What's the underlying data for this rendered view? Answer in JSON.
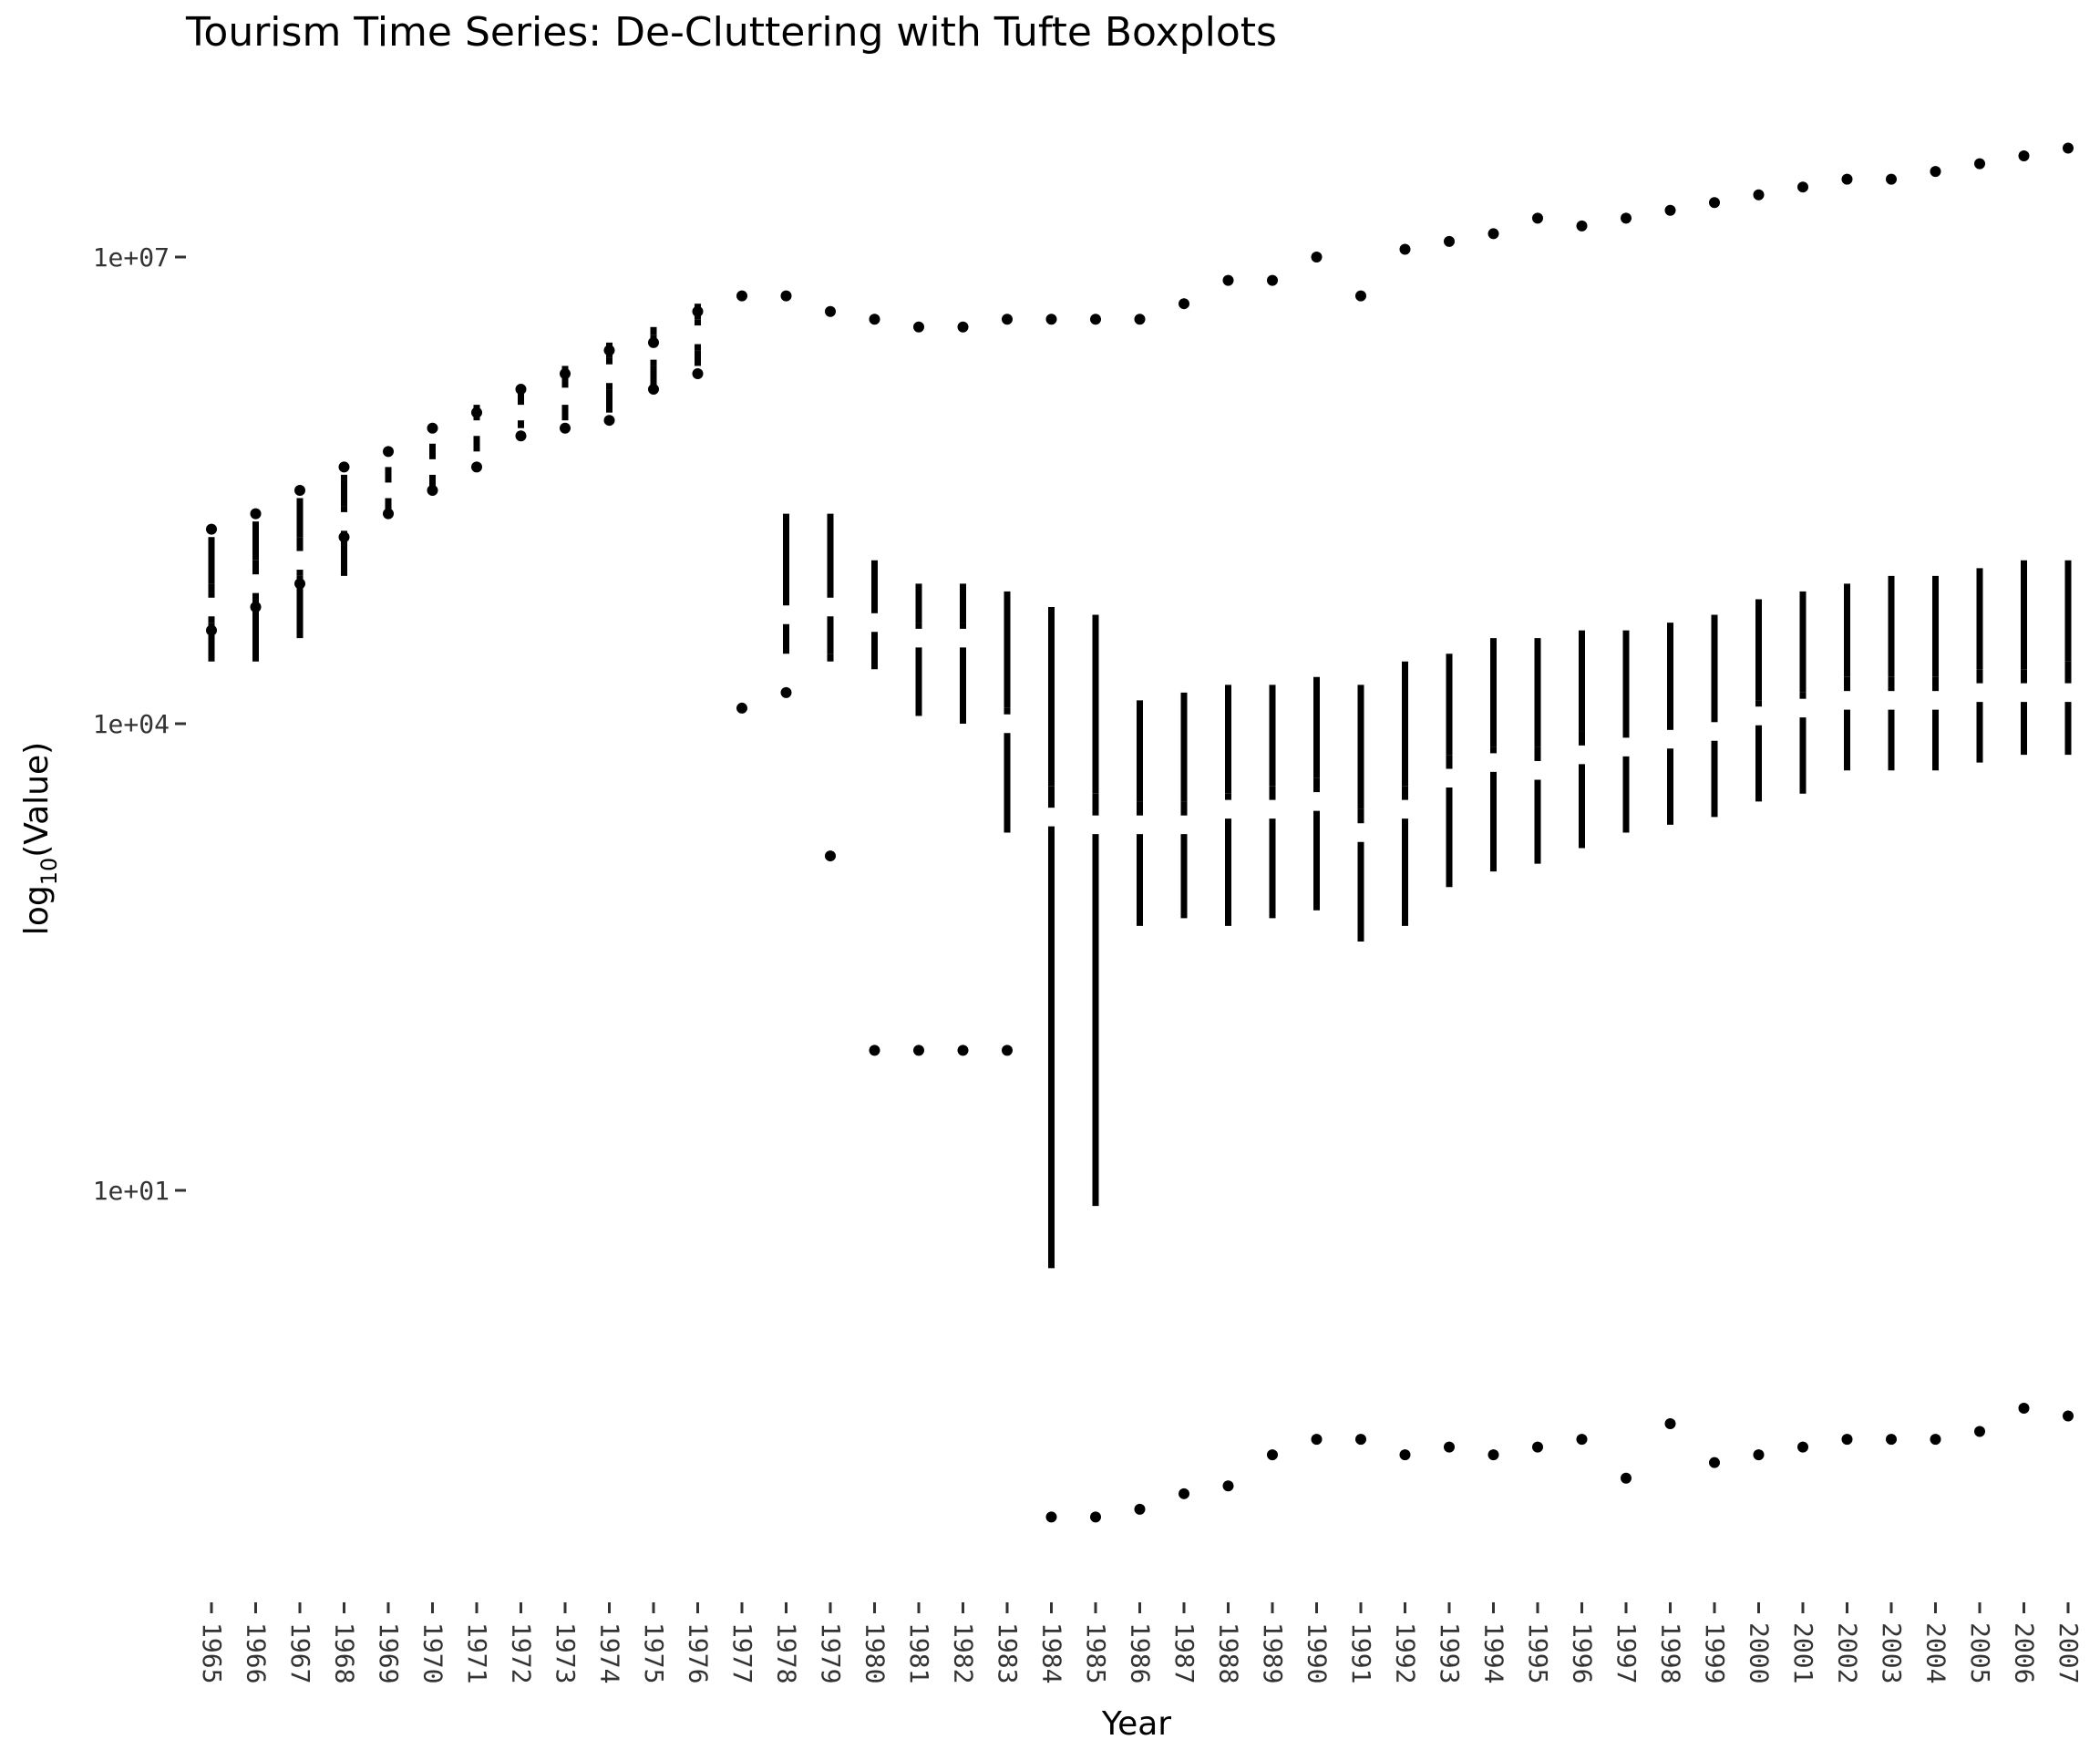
{
  "chart_data": {
    "type": "boxplot",
    "title": "Tourism Time Series: De-Cluttering with Tufte Boxplots",
    "xlabel": "Year",
    "ylabel": "log10(Value)",
    "ylabel_main": "log",
    "ylabel_sub": "10",
    "ylabel_rest": "(Value)",
    "y_scale": "log10",
    "ylim_log10": [
      -1.4,
      7.8
    ],
    "y_ticks": [
      {
        "label": "1e+01",
        "log10": 1
      },
      {
        "label": "1e+04",
        "log10": 4
      },
      {
        "label": "1e+07",
        "log10": 7
      }
    ],
    "grid": false,
    "legend": "none",
    "style": "tufte",
    "years": [
      {
        "year": "1965",
        "wl": 4.4,
        "q1": 4.65,
        "med": 4.75,
        "q3": 4.9,
        "wh": 5.2,
        "out": [
          4.6,
          5.25
        ]
      },
      {
        "year": "1966",
        "wl": 4.4,
        "q1": 4.8,
        "med": 4.9,
        "q3": 5.05,
        "wh": 5.3,
        "out": [
          4.75,
          5.35
        ]
      },
      {
        "year": "1967",
        "wl": 4.55,
        "q1": 4.95,
        "med": 5.05,
        "q3": 5.2,
        "wh": 5.45,
        "out": [
          4.9,
          5.5
        ]
      },
      {
        "year": "1968",
        "wl": 4.95,
        "q1": 5.2,
        "med": 5.3,
        "q3": 5.4,
        "wh": 5.6,
        "out": [
          5.2,
          5.65
        ]
      },
      {
        "year": "1969",
        "wl": 5.35,
        "q1": 5.45,
        "med": 5.5,
        "q3": 5.55,
        "wh": 5.65,
        "out": [
          5.35,
          5.75
        ]
      },
      {
        "year": "1970",
        "wl": 5.5,
        "q1": 5.6,
        "med": 5.65,
        "q3": 5.7,
        "wh": 5.8,
        "out": [
          5.5,
          5.9
        ]
      },
      {
        "year": "1971",
        "wl": 5.75,
        "q1": 5.85,
        "med": 5.9,
        "q3": 5.95,
        "wh": 6.05,
        "out": [
          5.65,
          6.0
        ]
      },
      {
        "year": "1972",
        "wl": 5.9,
        "q1": 5.95,
        "med": 6.0,
        "q3": 6.05,
        "wh": 6.15,
        "out": [
          5.85,
          6.15
        ]
      },
      {
        "year": "1973",
        "wl": 5.95,
        "q1": 6.05,
        "med": 6.1,
        "q3": 6.2,
        "wh": 6.3,
        "out": [
          5.9,
          6.25
        ]
      },
      {
        "year": "1974",
        "wl": 6.0,
        "q1": 6.15,
        "med": 6.25,
        "q3": 6.35,
        "wh": 6.45,
        "out": [
          5.95,
          6.4
        ]
      },
      {
        "year": "1975",
        "wl": 6.15,
        "q1": 6.3,
        "med": 6.4,
        "q3": 6.5,
        "wh": 6.55,
        "out": [
          6.15,
          6.45
        ]
      },
      {
        "year": "1976",
        "wl": 6.3,
        "q1": 6.4,
        "med": 6.5,
        "q3": 6.6,
        "wh": 6.7,
        "out": [
          6.25,
          6.65
        ]
      },
      {
        "year": "1977",
        "wl": null,
        "q1": null,
        "med": null,
        "q3": null,
        "wh": null,
        "out": [
          4.1,
          6.75
        ]
      },
      {
        "year": "1978",
        "wl": 4.45,
        "q1": 4.45,
        "med": 4.7,
        "q3": 5.35,
        "wh": 5.35,
        "out": [
          4.2,
          6.75
        ]
      },
      {
        "year": "1979",
        "wl": 4.4,
        "q1": 4.45,
        "med": 4.75,
        "q3": 5.35,
        "wh": 5.35,
        "out": [
          3.15,
          6.65
        ]
      },
      {
        "year": "1980",
        "wl": 4.35,
        "q1": 4.35,
        "med": 4.65,
        "q3": 4.75,
        "wh": 5.05,
        "out": [
          1.9,
          6.6
        ]
      },
      {
        "year": "1981",
        "wl": 4.05,
        "q1": 4.05,
        "med": 4.55,
        "q3": 4.65,
        "wh": 4.9,
        "out": [
          1.9,
          6.55
        ]
      },
      {
        "year": "1982",
        "wl": 4.0,
        "q1": 4.0,
        "med": 4.55,
        "q3": 4.65,
        "wh": 4.9,
        "out": [
          1.9,
          6.55
        ]
      },
      {
        "year": "1983",
        "wl": 3.3,
        "q1": 3.3,
        "med": 4.0,
        "q3": 4.1,
        "wh": 4.85,
        "out": [
          1.9,
          6.6
        ]
      },
      {
        "year": "1984",
        "wl": 0.5,
        "q1": 0.5,
        "med": 3.4,
        "q3": 3.6,
        "wh": 4.75,
        "out": [
          -1.1,
          6.6
        ]
      },
      {
        "year": "1985",
        "wl": 0.9,
        "q1": 0.9,
        "med": 3.35,
        "q3": 3.55,
        "wh": 4.7,
        "out": [
          -1.1,
          6.6
        ]
      },
      {
        "year": "1986",
        "wl": 2.7,
        "q1": 2.7,
        "med": 3.35,
        "q3": 3.5,
        "wh": 4.15,
        "out": [
          -1.05,
          6.6
        ]
      },
      {
        "year": "1987",
        "wl": 2.75,
        "q1": 2.75,
        "med": 3.35,
        "q3": 3.5,
        "wh": 4.2,
        "out": [
          -0.95,
          6.7
        ]
      },
      {
        "year": "1988",
        "wl": 2.7,
        "q1": 2.7,
        "med": 3.45,
        "q3": 3.55,
        "wh": 4.25,
        "out": [
          -0.9,
          6.85
        ]
      },
      {
        "year": "1989",
        "wl": 2.75,
        "q1": 2.75,
        "med": 3.45,
        "q3": 3.6,
        "wh": 4.25,
        "out": [
          -0.7,
          6.85
        ]
      },
      {
        "year": "1990",
        "wl": 2.8,
        "q1": 2.8,
        "med": 3.5,
        "q3": 3.65,
        "wh": 4.3,
        "out": [
          -0.6,
          7.0
        ]
      },
      {
        "year": "1991",
        "wl": 2.6,
        "q1": 2.6,
        "med": 3.3,
        "q3": 3.45,
        "wh": 4.25,
        "out": [
          -0.6,
          6.75
        ]
      },
      {
        "year": "1992",
        "wl": 2.7,
        "q1": 2.7,
        "med": 3.45,
        "q3": 3.6,
        "wh": 4.4,
        "out": [
          -0.7,
          7.05
        ]
      },
      {
        "year": "1993",
        "wl": 2.95,
        "q1": 2.95,
        "med": 3.65,
        "q3": 3.8,
        "wh": 4.45,
        "out": [
          -0.65,
          7.1
        ]
      },
      {
        "year": "1994",
        "wl": 3.05,
        "q1": 3.05,
        "med": 3.75,
        "q3": 3.85,
        "wh": 4.55,
        "out": [
          -0.7,
          7.15
        ]
      },
      {
        "year": "1995",
        "wl": 3.1,
        "q1": 3.1,
        "med": 3.7,
        "q3": 3.85,
        "wh": 4.55,
        "out": [
          -0.65,
          7.25
        ]
      },
      {
        "year": "1996",
        "wl": 3.2,
        "q1": 3.2,
        "med": 3.8,
        "q3": 3.95,
        "wh": 4.6,
        "out": [
          -0.6,
          7.2
        ]
      },
      {
        "year": "1997",
        "wl": 3.3,
        "q1": 3.3,
        "med": 3.85,
        "q3": 4.0,
        "wh": 4.6,
        "out": [
          -0.85,
          7.25
        ]
      },
      {
        "year": "1998",
        "wl": 3.35,
        "q1": 3.35,
        "med": 3.9,
        "q3": 4.05,
        "wh": 4.65,
        "out": [
          -0.5,
          7.3
        ]
      },
      {
        "year": "1999",
        "wl": 3.4,
        "q1": 3.4,
        "med": 3.95,
        "q3": 4.05,
        "wh": 4.7,
        "out": [
          -0.75,
          7.35
        ]
      },
      {
        "year": "2000",
        "wl": 3.5,
        "q1": 3.5,
        "med": 4.05,
        "q3": 4.15,
        "wh": 4.8,
        "out": [
          -0.7,
          7.4
        ]
      },
      {
        "year": "2001",
        "wl": 3.55,
        "q1": 3.55,
        "med": 4.1,
        "q3": 4.2,
        "wh": 4.85,
        "out": [
          -0.65,
          7.45
        ]
      },
      {
        "year": "2002",
        "wl": 3.7,
        "q1": 3.7,
        "med": 4.15,
        "q3": 4.3,
        "wh": 4.9,
        "out": [
          -0.6,
          7.5
        ]
      },
      {
        "year": "2003",
        "wl": 3.7,
        "q1": 3.7,
        "med": 4.15,
        "q3": 4.3,
        "wh": 4.95,
        "out": [
          -0.6,
          7.5
        ]
      },
      {
        "year": "2004",
        "wl": 3.7,
        "q1": 3.7,
        "med": 4.15,
        "q3": 4.3,
        "wh": 4.95,
        "out": [
          -0.6,
          7.55
        ]
      },
      {
        "year": "2005",
        "wl": 3.75,
        "q1": 3.75,
        "med": 4.2,
        "q3": 4.35,
        "wh": 5.0,
        "out": [
          -0.55,
          7.6
        ]
      },
      {
        "year": "2006",
        "wl": 3.8,
        "q1": 3.8,
        "med": 4.2,
        "q3": 4.35,
        "wh": 5.05,
        "out": [
          -0.4,
          7.65
        ]
      },
      {
        "year": "2007",
        "wl": 3.8,
        "q1": 3.8,
        "med": 4.2,
        "q3": 4.4,
        "wh": 5.05,
        "out": [
          -0.45,
          7.7
        ]
      }
    ]
  }
}
